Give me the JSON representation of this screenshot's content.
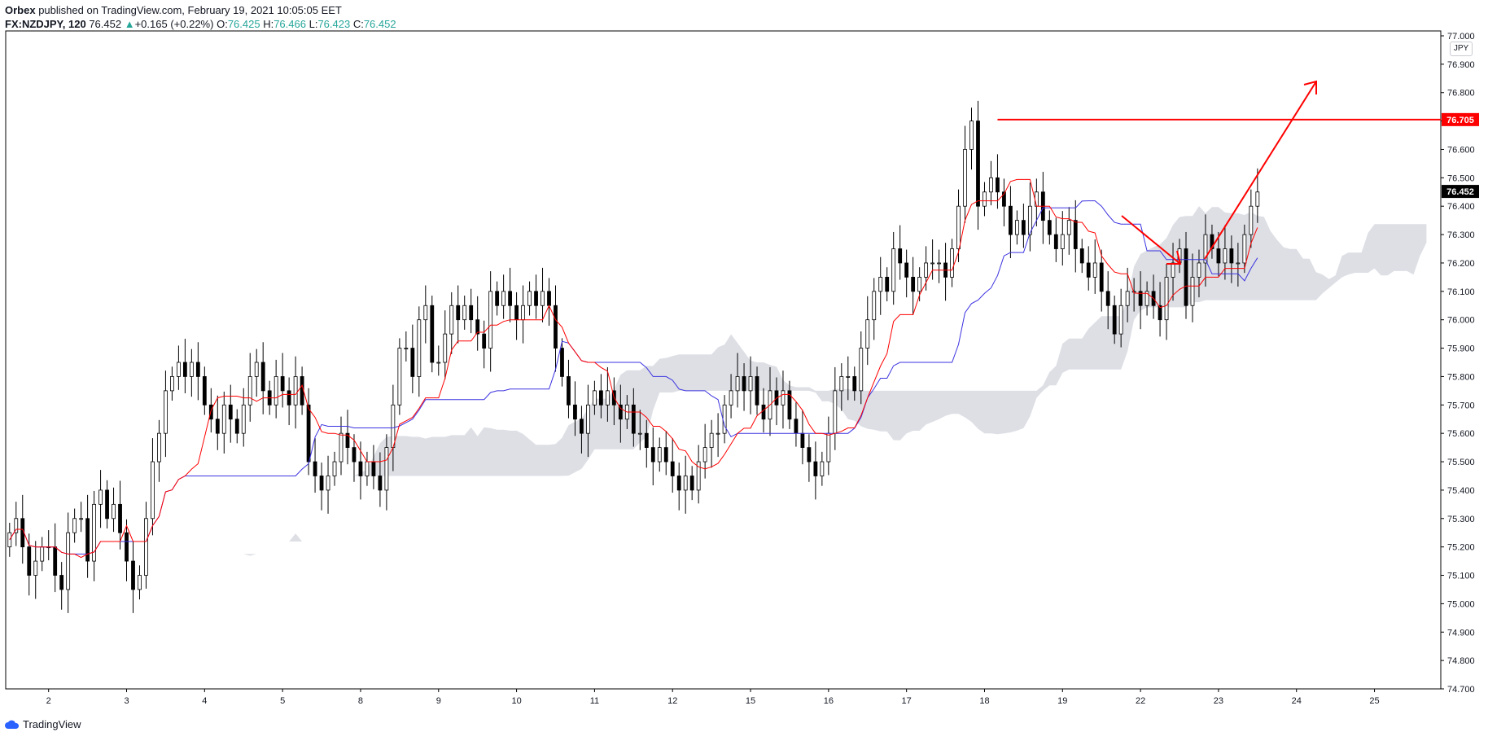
{
  "header": {
    "publisher": "Orbex",
    "published_text": "published on TradingView.com, February 19, 2021 10:05:05 EET",
    "symbol": "FX:NZDJPY, 120",
    "last": "76.452",
    "change_arrow": "▲",
    "change": "+0.165 (+0.22%)",
    "o_label": "O:",
    "o_value": "76.425",
    "h_label": "H:",
    "h_value": "76.466",
    "l_label": "L:",
    "l_value": "76.423",
    "c_label": "C:",
    "c_value": "76.452"
  },
  "footer": {
    "brand": "TradingView"
  },
  "colors": {
    "bull_body": "#ffffff",
    "bear_body": "#000000",
    "wick": "#000000",
    "tenkan": "#ff0000",
    "kijun": "#3c33e0",
    "cloud": "#d1d4dc",
    "level_line": "#ff0000",
    "arrows": "#ff0000",
    "axis_text": "#131722",
    "frame": "#000000"
  },
  "chart_data": {
    "type": "candlestick",
    "symbol": "FX:NZDJPY",
    "interval": "120",
    "currency_label": "JPY",
    "ylim": [
      74.7,
      77.0
    ],
    "y_ticks": [
      "77.000",
      "76.900",
      "76.800",
      "76.700",
      "76.600",
      "76.500",
      "76.400",
      "76.300",
      "76.200",
      "76.100",
      "76.000",
      "75.900",
      "75.800",
      "75.700",
      "75.600",
      "75.500",
      "75.400",
      "75.300",
      "75.200",
      "75.100",
      "75.000",
      "74.900",
      "74.800",
      "74.700"
    ],
    "x_ticks": [
      "2",
      "3",
      "4",
      "5",
      "8",
      "9",
      "10",
      "11",
      "12",
      "15",
      "16",
      "17",
      "18",
      "19",
      "22",
      "23",
      "24",
      "25"
    ],
    "x_tick_day_index": [
      1,
      2,
      3,
      4,
      5,
      6,
      7,
      8,
      9,
      10,
      11,
      12,
      13,
      14,
      15,
      16,
      17,
      18
    ],
    "xlim_days": [
      0.45,
      18.85
    ],
    "bars_per_day": 12,
    "start_day": 0.5,
    "price_labels": [
      {
        "value": "76.705",
        "style": "red"
      },
      {
        "value": "76.452",
        "style": "black"
      }
    ],
    "closes": [
      75.25,
      75.3,
      75.2,
      75.1,
      75.15,
      75.2,
      75.2,
      75.1,
      75.05,
      75.25,
      75.3,
      75.3,
      75.15,
      75.35,
      75.4,
      75.3,
      75.35,
      75.25,
      75.15,
      75.05,
      75.1,
      75.3,
      75.5,
      75.6,
      75.75,
      75.8,
      75.85,
      75.8,
      75.85,
      75.8,
      75.7,
      75.65,
      75.6,
      75.7,
      75.65,
      75.6,
      75.7,
      75.8,
      75.85,
      75.75,
      75.7,
      75.8,
      75.75,
      75.7,
      75.8,
      75.7,
      75.5,
      75.45,
      75.4,
      75.45,
      75.5,
      75.6,
      75.55,
      75.5,
      75.45,
      75.5,
      75.45,
      75.4,
      75.55,
      75.7,
      75.9,
      75.9,
      75.8,
      76.0,
      76.05,
      75.85,
      75.85,
      75.95,
      76.05,
      76.0,
      76.05,
      76.0,
      75.95,
      75.9,
      76.1,
      76.05,
      76.1,
      76.05,
      76.0,
      76.05,
      76.1,
      76.05,
      76.1,
      76.05,
      75.9,
      75.8,
      75.7,
      75.65,
      75.6,
      75.7,
      75.75,
      75.7,
      75.75,
      75.7,
      75.65,
      75.7,
      75.6,
      75.6,
      75.55,
      75.5,
      75.55,
      75.5,
      75.45,
      75.4,
      75.45,
      75.4,
      75.5,
      75.55,
      75.6,
      75.6,
      75.7,
      75.75,
      75.8,
      75.75,
      75.8,
      75.7,
      75.65,
      75.75,
      75.7,
      75.75,
      75.65,
      75.6,
      75.55,
      75.5,
      75.45,
      75.5,
      75.6,
      75.75,
      75.8,
      75.8,
      75.75,
      75.9,
      76.0,
      76.1,
      76.15,
      76.1,
      76.25,
      76.2,
      76.15,
      76.1,
      76.15,
      76.2,
      76.2,
      76.2,
      76.15,
      76.25,
      76.4,
      76.6,
      76.7,
      76.4,
      76.45,
      76.5,
      76.45,
      76.4,
      76.3,
      76.35,
      76.3,
      76.4,
      76.45,
      76.35,
      76.3,
      76.25,
      76.3,
      76.35,
      76.25,
      76.2,
      76.15,
      76.2,
      76.1,
      76.05,
      75.95,
      76.05,
      76.1,
      76.1,
      76.05,
      76.1,
      76.05,
      76.0,
      76.15,
      76.2,
      76.25,
      76.05,
      76.15,
      76.2,
      76.3,
      76.25,
      76.2,
      76.25,
      76.2,
      76.2,
      76.3,
      76.4,
      76.45
    ]
  }
}
